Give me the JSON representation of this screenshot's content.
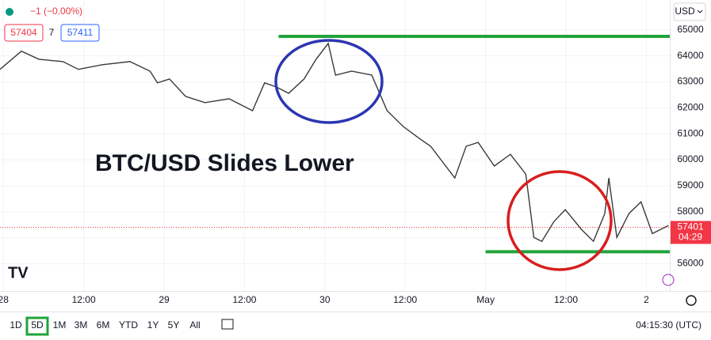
{
  "header": {
    "change": "−1 (−0.00%)",
    "bid": "57404",
    "spread": "7",
    "ask": "57411",
    "currency": "USD"
  },
  "chart_data": {
    "type": "line",
    "annotation": "BTC/USD Slides Lower",
    "color": "#3a3a3a",
    "x": [
      -0.5,
      2.7,
      5.3,
      8.9,
      11.2,
      14.8,
      18.9,
      21.9,
      23.0,
      24.8,
      27.2,
      30.1,
      33.7,
      37.2,
      39.0,
      40.8,
      42.6,
      44.9,
      46.7,
      48.5,
      49.6,
      52.0,
      55.0,
      57.3,
      59.7,
      62.1,
      63.8,
      67.4,
      69.1,
      70.9,
      73.3,
      75.7,
      78.0,
      79.2,
      80.4,
      82.2,
      83.9,
      86.3,
      88.1,
      89.8,
      90.4,
      91.6,
      93.4,
      95.2,
      96.9,
      99.3
    ],
    "series": [
      {
        "values": [
          63480,
          64180,
          63870,
          63780,
          63480,
          63660,
          63780,
          63410,
          62960,
          63110,
          62440,
          62200,
          62350,
          61890,
          62960,
          62800,
          62560,
          63110,
          63870,
          64480,
          63260,
          63410,
          63260,
          61890,
          61280,
          60820,
          60520,
          59300,
          60520,
          60670,
          59760,
          60210,
          59450,
          57010,
          56860,
          57620,
          58080,
          57320,
          56860,
          57930,
          59300,
          57010,
          57930,
          58380,
          57160,
          57470
        ]
      }
    ],
    "xlim": [
      -0.5,
      99.5
    ],
    "xticks": [
      {
        "value": 0,
        "label": "28"
      },
      {
        "value": 12,
        "label": "12:00"
      },
      {
        "value": 24,
        "label": "29"
      },
      {
        "value": 36,
        "label": "12:00"
      },
      {
        "value": 48,
        "label": "30"
      },
      {
        "value": 60,
        "label": "12:00"
      },
      {
        "value": 72,
        "label": "May"
      },
      {
        "value": 84,
        "label": "12:00"
      },
      {
        "value": 96,
        "label": "2"
      }
    ],
    "ylim": [
      54950,
      66150
    ],
    "yticks": [
      56000,
      57000,
      58000,
      59000,
      60000,
      61000,
      62000,
      63000,
      64000,
      65000
    ],
    "levels": [
      {
        "value": 64750,
        "from": 41.1,
        "color": "#22a33a"
      },
      {
        "value": 56460,
        "from": 72.0,
        "color": "#22a33a"
      }
    ],
    "last_price": 57401,
    "countdown": "04:29"
  },
  "toolbar": {
    "ranges": [
      "1D",
      "5D",
      "1M",
      "3M",
      "6M",
      "YTD",
      "1Y",
      "5Y",
      "All"
    ],
    "time": "04:15:30 (UTC)"
  }
}
